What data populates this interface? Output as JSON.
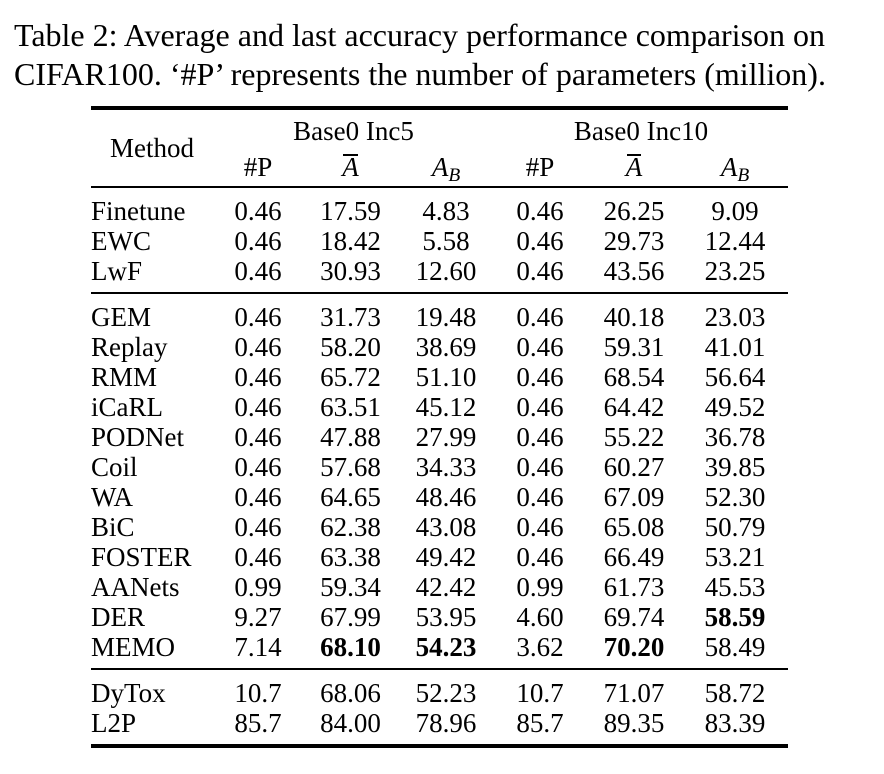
{
  "caption": {
    "lines": [
      "Table 2: Average and last accuracy performance comparison on",
      "CIFAR100. ‘#P’ represents the number of parameters (million)."
    ]
  },
  "table": {
    "method_header": "Method",
    "groups": [
      "Base0 Inc5",
      "Base0 Inc10"
    ],
    "subheaders": [
      {
        "main": "#P",
        "cal": false,
        "overline": false,
        "sub": "",
        "key": "p-inc5"
      },
      {
        "main": "A",
        "cal": true,
        "overline": true,
        "sub": "",
        "key": "avg-acc-inc5"
      },
      {
        "main": "A",
        "cal": true,
        "overline": false,
        "sub": "B",
        "key": "last-acc-inc5"
      },
      {
        "main": "#P",
        "cal": false,
        "overline": false,
        "sub": "",
        "key": "p-inc10"
      },
      {
        "main": "A",
        "cal": true,
        "overline": true,
        "sub": "",
        "key": "avg-acc-inc10"
      },
      {
        "main": "A",
        "cal": true,
        "overline": false,
        "sub": "B",
        "key": "last-acc-inc10"
      }
    ],
    "row_groups": [
      {
        "rows": [
          {
            "method": "Finetune",
            "values": [
              "0.46",
              "17.59",
              "4.83",
              "0.46",
              "26.25",
              "9.09"
            ],
            "bold": []
          },
          {
            "method": "EWC",
            "values": [
              "0.46",
              "18.42",
              "5.58",
              "0.46",
              "29.73",
              "12.44"
            ],
            "bold": []
          },
          {
            "method": "LwF",
            "values": [
              "0.46",
              "30.93",
              "12.60",
              "0.46",
              "43.56",
              "23.25"
            ],
            "bold": []
          }
        ]
      },
      {
        "rows": [
          {
            "method": "GEM",
            "values": [
              "0.46",
              "31.73",
              "19.48",
              "0.46",
              "40.18",
              "23.03"
            ],
            "bold": []
          },
          {
            "method": "Replay",
            "values": [
              "0.46",
              "58.20",
              "38.69",
              "0.46",
              "59.31",
              "41.01"
            ],
            "bold": []
          },
          {
            "method": "RMM",
            "values": [
              "0.46",
              "65.72",
              "51.10",
              "0.46",
              "68.54",
              "56.64"
            ],
            "bold": []
          },
          {
            "method": "iCaRL",
            "values": [
              "0.46",
              "63.51",
              "45.12",
              "0.46",
              "64.42",
              "49.52"
            ],
            "bold": []
          },
          {
            "method": "PODNet",
            "values": [
              "0.46",
              "47.88",
              "27.99",
              "0.46",
              "55.22",
              "36.78"
            ],
            "bold": []
          },
          {
            "method": "Coil",
            "values": [
              "0.46",
              "57.68",
              "34.33",
              "0.46",
              "60.27",
              "39.85"
            ],
            "bold": []
          },
          {
            "method": "WA",
            "values": [
              "0.46",
              "64.65",
              "48.46",
              "0.46",
              "67.09",
              "52.30"
            ],
            "bold": []
          },
          {
            "method": "BiC",
            "values": [
              "0.46",
              "62.38",
              "43.08",
              "0.46",
              "65.08",
              "50.79"
            ],
            "bold": []
          },
          {
            "method": "FOSTER",
            "values": [
              "0.46",
              "63.38",
              "49.42",
              "0.46",
              "66.49",
              "53.21"
            ],
            "bold": []
          },
          {
            "method": "AANets",
            "values": [
              "0.99",
              "59.34",
              "42.42",
              "0.99",
              "61.73",
              "45.53"
            ],
            "bold": []
          },
          {
            "method": "DER",
            "values": [
              "9.27",
              "67.99",
              "53.95",
              "4.60",
              "69.74",
              "58.59"
            ],
            "bold": [
              5
            ]
          },
          {
            "method": "MEMO",
            "values": [
              "7.14",
              "68.10",
              "54.23",
              "3.62",
              "70.20",
              "58.49"
            ],
            "bold": [
              1,
              2,
              4
            ]
          }
        ]
      },
      {
        "rows": [
          {
            "method": "DyTox",
            "values": [
              "10.7",
              "68.06",
              "52.23",
              "10.7",
              "71.07",
              "58.72"
            ],
            "bold": []
          },
          {
            "method": "L2P",
            "values": [
              "85.7",
              "84.00",
              "78.96",
              "85.7",
              "89.35",
              "83.39"
            ],
            "bold": []
          }
        ]
      }
    ]
  }
}
